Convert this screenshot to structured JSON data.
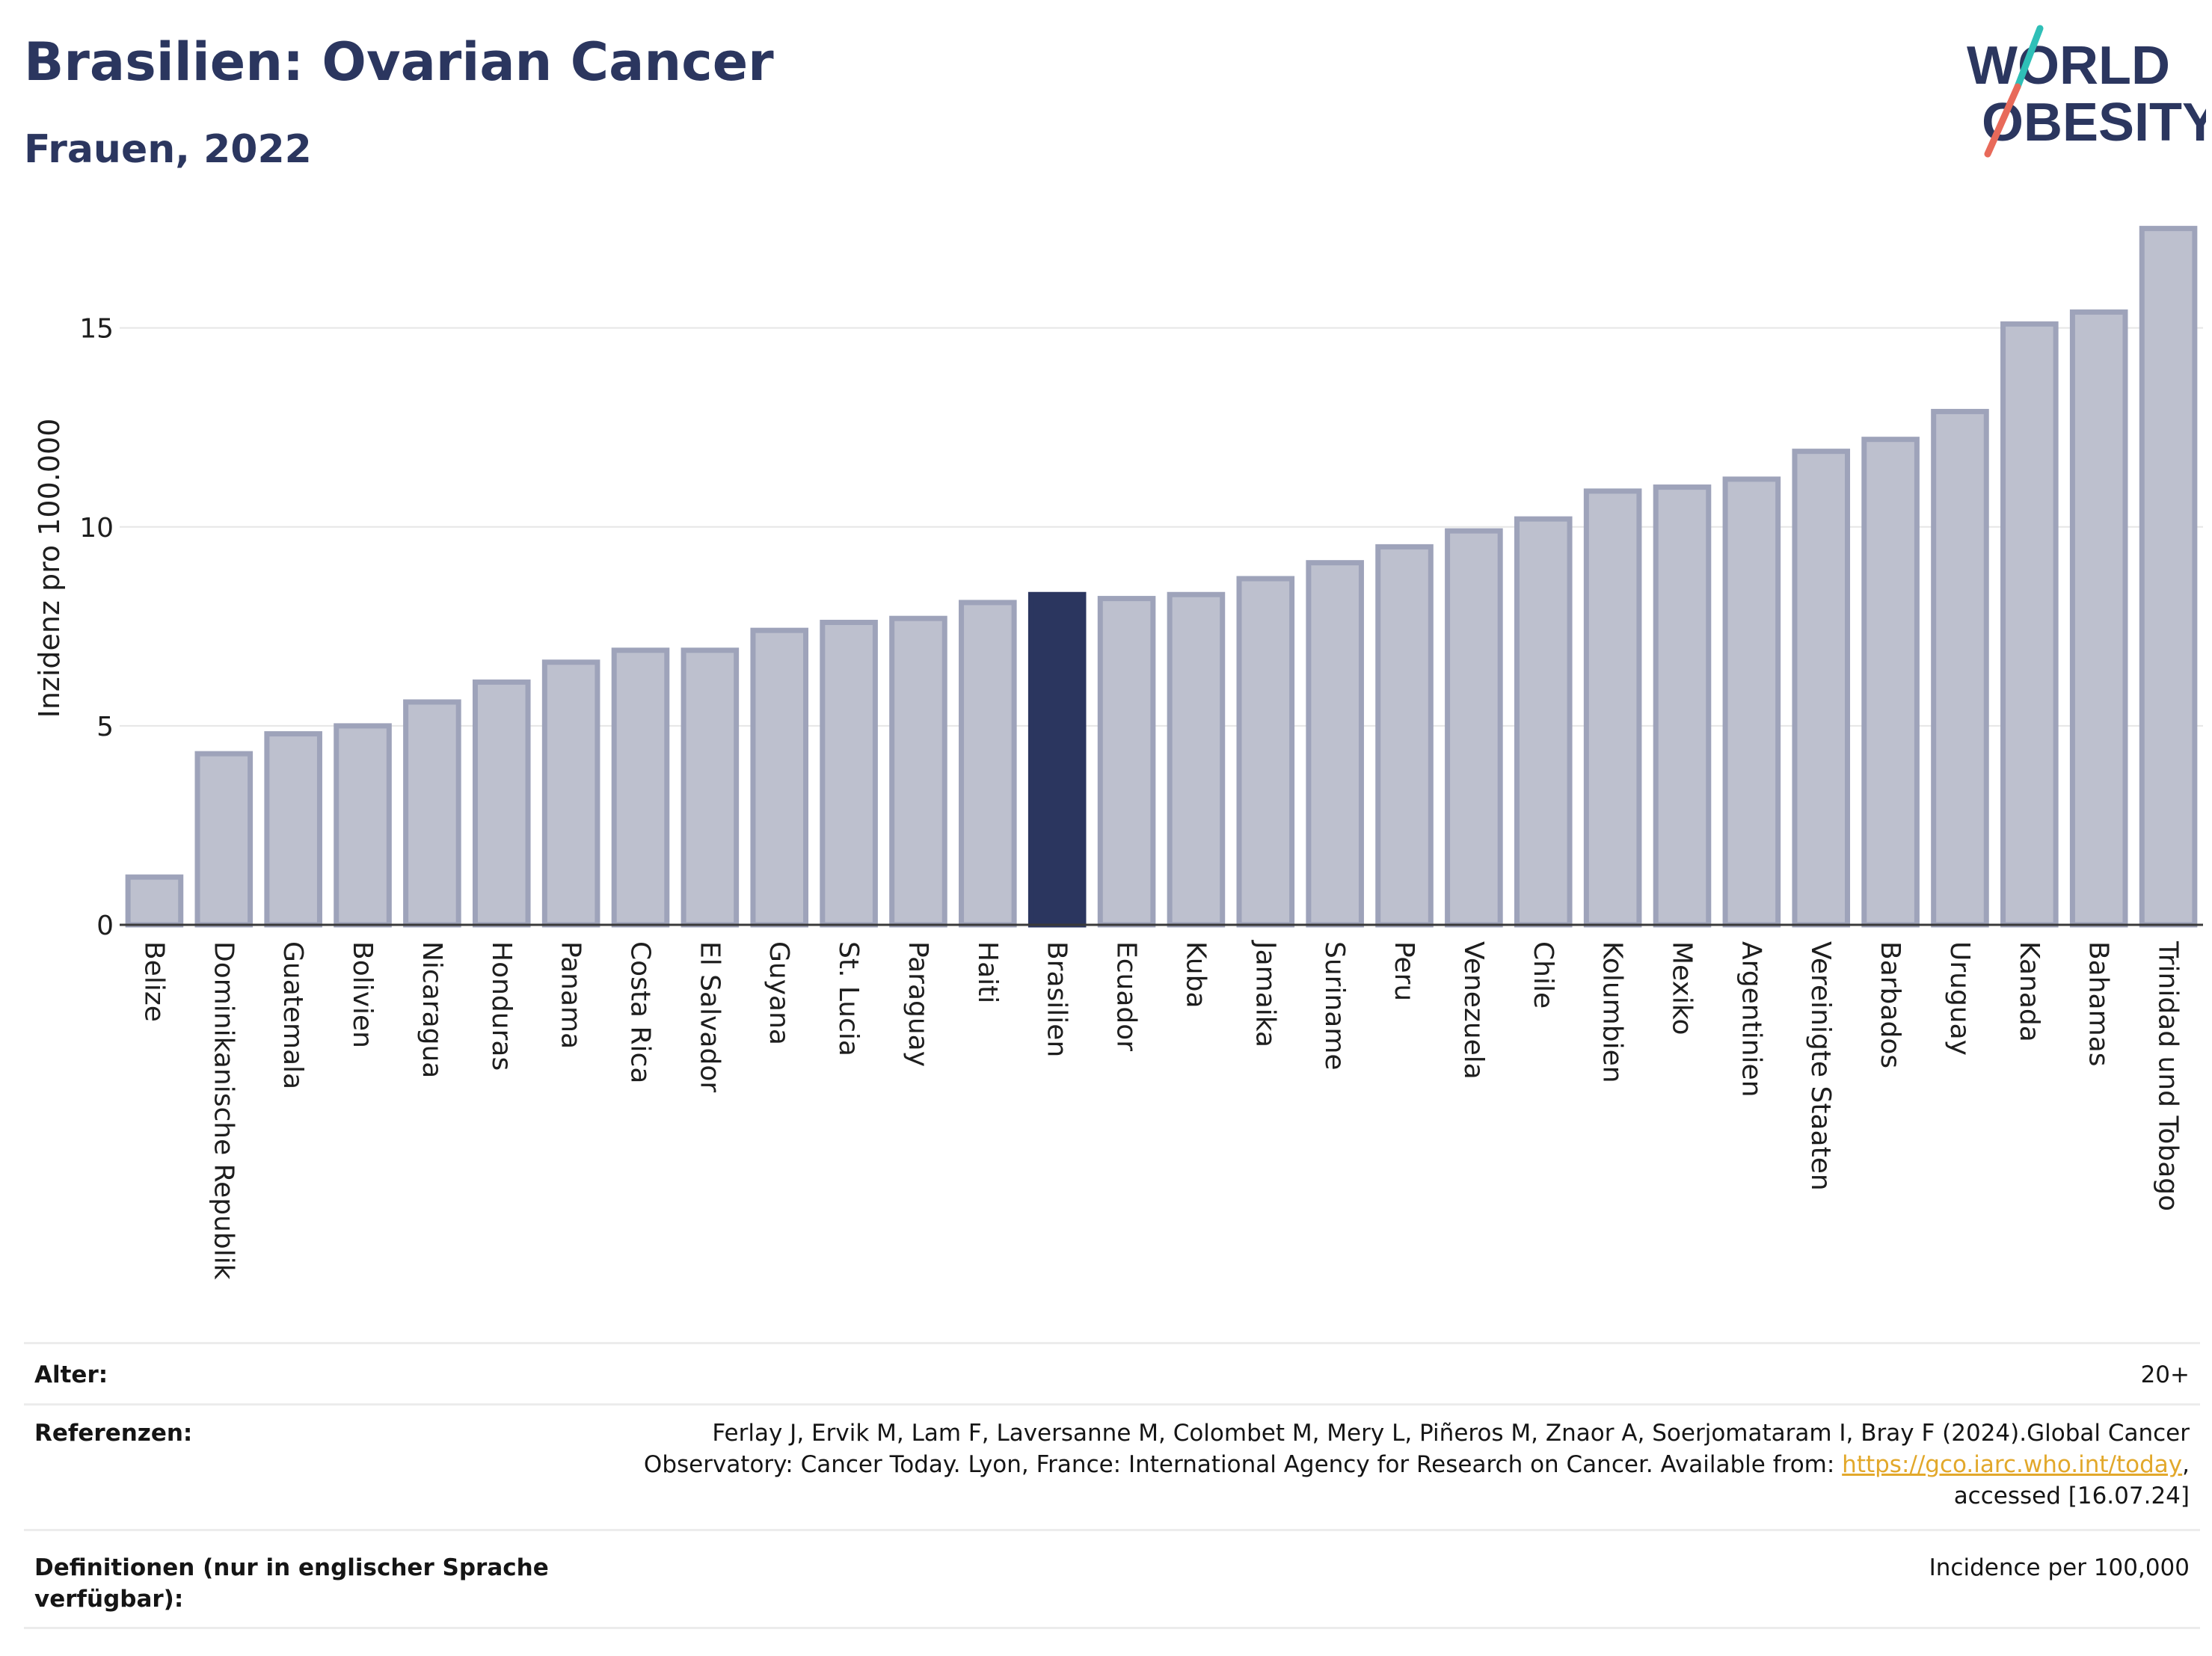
{
  "title": "Brasilien: Ovarian Cancer",
  "subtitle": "Frauen, 2022",
  "logo": {
    "line1": "WORLD",
    "line2": "OBESITY"
  },
  "colors": {
    "bar": "#bdc0ce",
    "bar_border": "#9ea3ba",
    "highlight": "#2b365f",
    "text": "#2b365f",
    "link": "#e2a82b"
  },
  "chart_data": {
    "type": "bar",
    "ylabel": "Inzidenz pro 100.000",
    "ylim": [
      0,
      18
    ],
    "yticks": [
      0,
      5,
      10,
      15
    ],
    "highlight": "Brasilien",
    "grid": true,
    "categories": [
      "Belize",
      "Dominikanische Republik",
      "Guatemala",
      "Bolivien",
      "Nicaragua",
      "Honduras",
      "Panama",
      "Costa Rica",
      "El Salvador",
      "Guyana",
      "St. Lucia",
      "Paraguay",
      "Haiti",
      "Brasilien",
      "Ecuador",
      "Kuba",
      "Jamaika",
      "Suriname",
      "Peru",
      "Venezuela",
      "Chile",
      "Kolumbien",
      "Mexiko",
      "Argentinien",
      "Vereinigte Staaten",
      "Barbados",
      "Uruguay",
      "Kanada",
      "Bahamas",
      "Trinidad und Tobago"
    ],
    "values": [
      1.2,
      4.3,
      4.8,
      5.0,
      5.6,
      6.1,
      6.6,
      6.9,
      6.9,
      7.4,
      7.6,
      7.7,
      8.1,
      8.3,
      8.2,
      8.3,
      8.7,
      9.1,
      9.5,
      9.9,
      10.2,
      10.9,
      11.0,
      11.2,
      11.9,
      12.2,
      12.9,
      15.1,
      15.4,
      17.5
    ]
  },
  "info": {
    "age_label": "Alter:",
    "age_value": "20+",
    "ref_label": "Referenzen:",
    "ref_line1": "Ferlay J, Ervik M, Lam F, Laversanne M, Colombet M, Mery L, Piñeros M, Znaor A, Soerjomataram I, Bray F (2024).Global Cancer",
    "ref_line2_pre": "Observatory: Cancer Today. Lyon, France: International Agency for Research on Cancer. Available from: ",
    "ref_link": "https://gco.iarc.who.int/today",
    "ref_line2_post": ",",
    "ref_line3": "accessed [16.07.24]",
    "def_label_1": "Definitionen (nur in englischer Sprache",
    "def_label_2": "verfügbar):",
    "def_value": "Incidence per 100,000"
  }
}
